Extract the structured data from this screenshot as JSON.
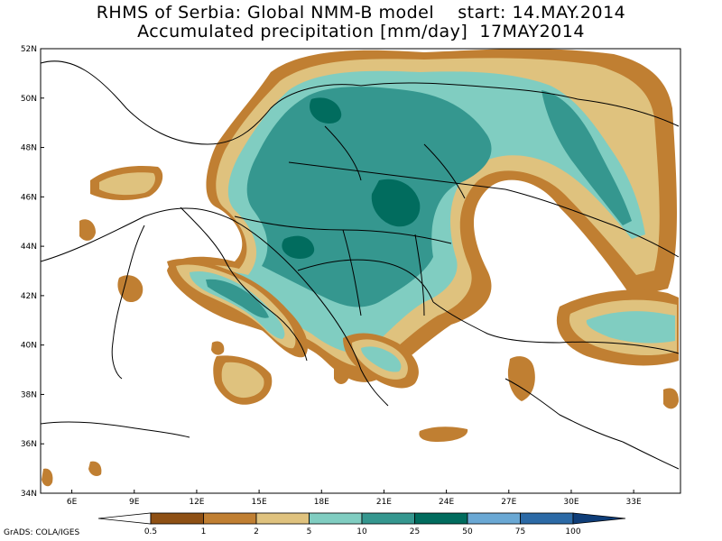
{
  "title": {
    "line1": "RHMS of Serbia: Global NMM-B model    start: 14.MAY.2014",
    "line2": "Accumulated precipitation [mm/day]  17MAY2014"
  },
  "map": {
    "lat_labels": [
      "52N",
      "50N",
      "48N",
      "46N",
      "44N",
      "42N",
      "40N",
      "38N",
      "36N",
      "34N"
    ],
    "lon_labels": [
      "6E",
      "9E",
      "12E",
      "15E",
      "18E",
      "21E",
      "24E",
      "27E",
      "30E",
      "33E"
    ],
    "colors": {
      "border": "#000000",
      "land": "#ffffff",
      "very_light": "#f2e4c0"
    }
  },
  "legend": {
    "units": "mm/day",
    "thresholds": [
      "0.5",
      "1",
      "2",
      "5",
      "10",
      "25",
      "50",
      "75",
      "100"
    ],
    "colors": [
      "#fcfcfc",
      "#8e5014",
      "#c07f32",
      "#dfc27e",
      "#80cdc1",
      "#35978f",
      "#016c5e",
      "#6aa8d4",
      "#2c6aa6",
      "#0e3d78"
    ]
  },
  "credit": "GrADS: COLA/IGES"
}
